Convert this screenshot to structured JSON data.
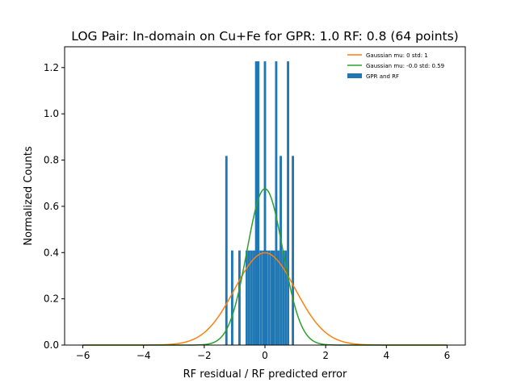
{
  "chart_data": {
    "type": "bar",
    "title": "LOG Pair: In-domain on Cu+Fe for GPR: 1.0 RF: 0.8 (64 points)",
    "xlabel": "RF residual / RF predicted error",
    "ylabel": "Normalized Counts",
    "xlim": [
      -6.6,
      6.6
    ],
    "ylim": [
      0,
      1.29
    ],
    "xticks": [
      -6,
      -4,
      -2,
      0,
      2,
      4,
      6
    ],
    "xtick_labels": [
      "−6",
      "−4",
      "−2",
      "0",
      "2",
      "4",
      "6"
    ],
    "yticks": [
      0,
      0.2,
      0.4,
      0.6,
      0.8,
      1.0,
      1.2
    ],
    "ytick_labels": [
      "0.0",
      "0.2",
      "0.4",
      "0.6",
      "0.8",
      "1.0",
      "1.2"
    ],
    "grid": false,
    "legend_position": "top-right",
    "bar_width": 0.076,
    "bars": {
      "name": "GPR and RF",
      "color": "#1f77b4",
      "x": [
        -1.27,
        -1.08,
        -0.84,
        -0.6,
        -0.52,
        -0.44,
        -0.36,
        -0.29,
        -0.22,
        -0.14,
        -0.06,
        0.0,
        0.06,
        0.14,
        0.22,
        0.29,
        0.37,
        0.44,
        0.52,
        0.6,
        0.68,
        0.76,
        0.92
      ],
      "values": [
        0.818,
        0.409,
        0.409,
        0.409,
        0.409,
        0.409,
        0.409,
        1.227,
        1.227,
        0.409,
        0.409,
        1.227,
        0.409,
        0.409,
        0.409,
        0.409,
        1.227,
        0.409,
        0.818,
        0.409,
        0.409,
        1.227,
        0.818
      ]
    },
    "series": [
      {
        "name": "Gaussian mu: 0 std: 1",
        "color": "#ff7f0e",
        "mu": 0,
        "std": 1
      },
      {
        "name": "Gaussian mu: -0.0 std: 0.59",
        "color": "#2ca02c",
        "mu": 0,
        "std": 0.59
      }
    ]
  }
}
